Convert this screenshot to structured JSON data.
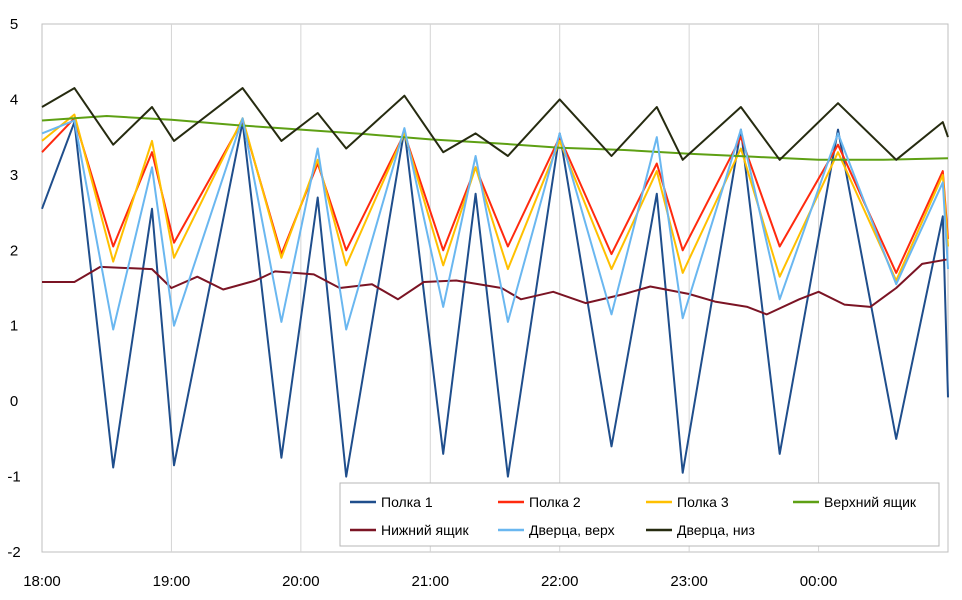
{
  "chart_data": {
    "type": "line",
    "title": "",
    "xlabel": "",
    "ylabel": "",
    "ylim": [
      -2,
      5
    ],
    "yticks": [
      -2,
      -1,
      0,
      1,
      2,
      3,
      4,
      5
    ],
    "xlim": [
      0,
      7
    ],
    "xticks": [
      {
        "x": 0,
        "label": "18:00"
      },
      {
        "x": 1,
        "label": "19:00"
      },
      {
        "x": 2,
        "label": "20:00"
      },
      {
        "x": 3,
        "label": "21:00"
      },
      {
        "x": 4,
        "label": "22:00"
      },
      {
        "x": 5,
        "label": "23:00"
      },
      {
        "x": 6,
        "label": "00:00"
      }
    ],
    "grid": "vertical",
    "legend_position": "bottom-right",
    "series": [
      {
        "name": "Полка 1",
        "color": "#1f4e8c",
        "points": [
          [
            0,
            2.55
          ],
          [
            0.25,
            3.7
          ],
          [
            0.55,
            -0.88
          ],
          [
            0.85,
            2.55
          ],
          [
            1.02,
            -0.85
          ],
          [
            1.55,
            3.7
          ],
          [
            1.85,
            -0.75
          ],
          [
            2.13,
            2.7
          ],
          [
            2.35,
            -1.0
          ],
          [
            2.8,
            3.6
          ],
          [
            3.1,
            -0.7
          ],
          [
            3.35,
            2.75
          ],
          [
            3.6,
            -1.0
          ],
          [
            4.0,
            3.55
          ],
          [
            4.4,
            -0.6
          ],
          [
            4.75,
            2.75
          ],
          [
            4.95,
            -0.95
          ],
          [
            5.4,
            3.6
          ],
          [
            5.7,
            -0.7
          ],
          [
            6.15,
            3.6
          ],
          [
            6.6,
            -0.5
          ],
          [
            6.96,
            2.45
          ],
          [
            7.0,
            0.05
          ]
        ]
      },
      {
        "name": "Полка 2",
        "color": "#ff2a0e",
        "points": [
          [
            0,
            3.3
          ],
          [
            0.25,
            3.75
          ],
          [
            0.55,
            2.05
          ],
          [
            0.85,
            3.3
          ],
          [
            1.02,
            2.1
          ],
          [
            1.55,
            3.72
          ],
          [
            1.85,
            1.95
          ],
          [
            2.13,
            3.15
          ],
          [
            2.35,
            2.0
          ],
          [
            2.8,
            3.55
          ],
          [
            3.1,
            2.0
          ],
          [
            3.35,
            3.1
          ],
          [
            3.6,
            2.05
          ],
          [
            4.0,
            3.5
          ],
          [
            4.4,
            1.95
          ],
          [
            4.75,
            3.15
          ],
          [
            4.95,
            2.0
          ],
          [
            5.4,
            3.5
          ],
          [
            5.7,
            2.05
          ],
          [
            6.15,
            3.4
          ],
          [
            6.6,
            1.7
          ],
          [
            6.96,
            3.05
          ],
          [
            7.0,
            2.15
          ]
        ]
      },
      {
        "name": "Полка 3",
        "color": "#ffc000",
        "points": [
          [
            0,
            3.45
          ],
          [
            0.25,
            3.8
          ],
          [
            0.55,
            1.85
          ],
          [
            0.85,
            3.45
          ],
          [
            1.02,
            1.9
          ],
          [
            1.55,
            3.75
          ],
          [
            1.85,
            1.9
          ],
          [
            2.13,
            3.2
          ],
          [
            2.35,
            1.8
          ],
          [
            2.8,
            3.55
          ],
          [
            3.1,
            1.8
          ],
          [
            3.35,
            3.1
          ],
          [
            3.6,
            1.75
          ],
          [
            4.0,
            3.45
          ],
          [
            4.4,
            1.75
          ],
          [
            4.75,
            3.05
          ],
          [
            4.95,
            1.7
          ],
          [
            5.4,
            3.35
          ],
          [
            5.7,
            1.65
          ],
          [
            6.15,
            3.3
          ],
          [
            6.6,
            1.6
          ],
          [
            6.96,
            3.0
          ],
          [
            7.0,
            2.05
          ]
        ]
      },
      {
        "name": "Верхний ящик",
        "color": "#5ea014",
        "points": [
          [
            0,
            3.72
          ],
          [
            0.5,
            3.78
          ],
          [
            1.0,
            3.73
          ],
          [
            1.5,
            3.66
          ],
          [
            2.0,
            3.6
          ],
          [
            2.5,
            3.54
          ],
          [
            3.0,
            3.47
          ],
          [
            3.5,
            3.42
          ],
          [
            4.0,
            3.36
          ],
          [
            4.5,
            3.33
          ],
          [
            5.0,
            3.28
          ],
          [
            5.5,
            3.24
          ],
          [
            6.0,
            3.2
          ],
          [
            6.5,
            3.2
          ],
          [
            7.0,
            3.22
          ]
        ]
      },
      {
        "name": "Нижний ящик",
        "color": "#7b1424",
        "points": [
          [
            0,
            1.58
          ],
          [
            0.25,
            1.58
          ],
          [
            0.45,
            1.78
          ],
          [
            0.85,
            1.75
          ],
          [
            1.0,
            1.5
          ],
          [
            1.2,
            1.65
          ],
          [
            1.4,
            1.48
          ],
          [
            1.65,
            1.6
          ],
          [
            1.8,
            1.72
          ],
          [
            2.1,
            1.68
          ],
          [
            2.3,
            1.5
          ],
          [
            2.55,
            1.55
          ],
          [
            2.75,
            1.35
          ],
          [
            2.95,
            1.58
          ],
          [
            3.2,
            1.6
          ],
          [
            3.55,
            1.5
          ],
          [
            3.7,
            1.35
          ],
          [
            3.95,
            1.45
          ],
          [
            4.2,
            1.3
          ],
          [
            4.5,
            1.42
          ],
          [
            4.7,
            1.52
          ],
          [
            5.0,
            1.42
          ],
          [
            5.2,
            1.32
          ],
          [
            5.45,
            1.25
          ],
          [
            5.6,
            1.15
          ],
          [
            5.85,
            1.35
          ],
          [
            6.0,
            1.45
          ],
          [
            6.2,
            1.28
          ],
          [
            6.4,
            1.25
          ],
          [
            6.6,
            1.5
          ],
          [
            6.8,
            1.82
          ],
          [
            7.0,
            1.88
          ]
        ]
      },
      {
        "name": "Дверца, верх",
        "color": "#6ab7f0",
        "points": [
          [
            0,
            3.55
          ],
          [
            0.25,
            3.72
          ],
          [
            0.55,
            0.95
          ],
          [
            0.85,
            3.1
          ],
          [
            1.02,
            1.0
          ],
          [
            1.55,
            3.75
          ],
          [
            1.85,
            1.05
          ],
          [
            2.13,
            3.35
          ],
          [
            2.35,
            0.95
          ],
          [
            2.8,
            3.62
          ],
          [
            3.1,
            1.25
          ],
          [
            3.35,
            3.25
          ],
          [
            3.6,
            1.05
          ],
          [
            4.0,
            3.55
          ],
          [
            4.4,
            1.15
          ],
          [
            4.75,
            3.5
          ],
          [
            4.95,
            1.1
          ],
          [
            5.4,
            3.6
          ],
          [
            5.7,
            1.35
          ],
          [
            6.15,
            3.55
          ],
          [
            6.6,
            1.55
          ],
          [
            6.96,
            2.9
          ],
          [
            7.0,
            1.75
          ]
        ]
      },
      {
        "name": "Дверца, низ",
        "color": "#262b10",
        "points": [
          [
            0,
            3.9
          ],
          [
            0.25,
            4.15
          ],
          [
            0.55,
            3.4
          ],
          [
            0.85,
            3.9
          ],
          [
            1.02,
            3.45
          ],
          [
            1.55,
            4.15
          ],
          [
            1.85,
            3.45
          ],
          [
            2.13,
            3.82
          ],
          [
            2.35,
            3.35
          ],
          [
            2.8,
            4.05
          ],
          [
            3.1,
            3.3
          ],
          [
            3.35,
            3.55
          ],
          [
            3.6,
            3.25
          ],
          [
            4.0,
            4.0
          ],
          [
            4.4,
            3.25
          ],
          [
            4.75,
            3.9
          ],
          [
            4.95,
            3.2
          ],
          [
            5.4,
            3.9
          ],
          [
            5.7,
            3.2
          ],
          [
            6.15,
            3.95
          ],
          [
            6.6,
            3.2
          ],
          [
            6.96,
            3.7
          ],
          [
            7.0,
            3.5
          ]
        ]
      }
    ]
  }
}
